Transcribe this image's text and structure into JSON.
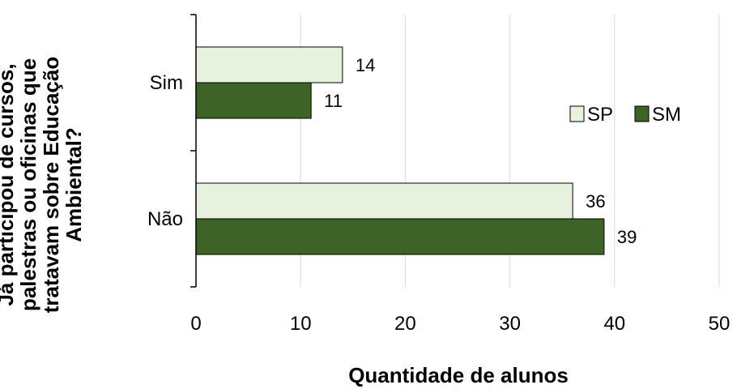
{
  "chart_data": {
    "type": "bar",
    "orientation": "horizontal",
    "categories": [
      "Sim",
      "Não"
    ],
    "series": [
      {
        "name": "SP",
        "values": [
          14,
          36
        ],
        "color": "#e6f2dd"
      },
      {
        "name": "SM",
        "values": [
          11,
          39
        ],
        "color": "#3d6426"
      }
    ],
    "xlabel": "Quantidade de alunos",
    "ylabel": "Já participou de cursos, palestras ou oficinas que tratavam sobre Educação Ambiental?",
    "ylabel_lines": [
      "Já participou de cursos,",
      "palestras ou oficinas que",
      "tratavam sobre Educação",
      "Ambiental?"
    ],
    "xlim": [
      0,
      50
    ],
    "xticks": [
      0,
      10,
      20,
      30,
      40,
      50
    ],
    "grid": "vertical",
    "legend": "right",
    "data_labels": true
  }
}
